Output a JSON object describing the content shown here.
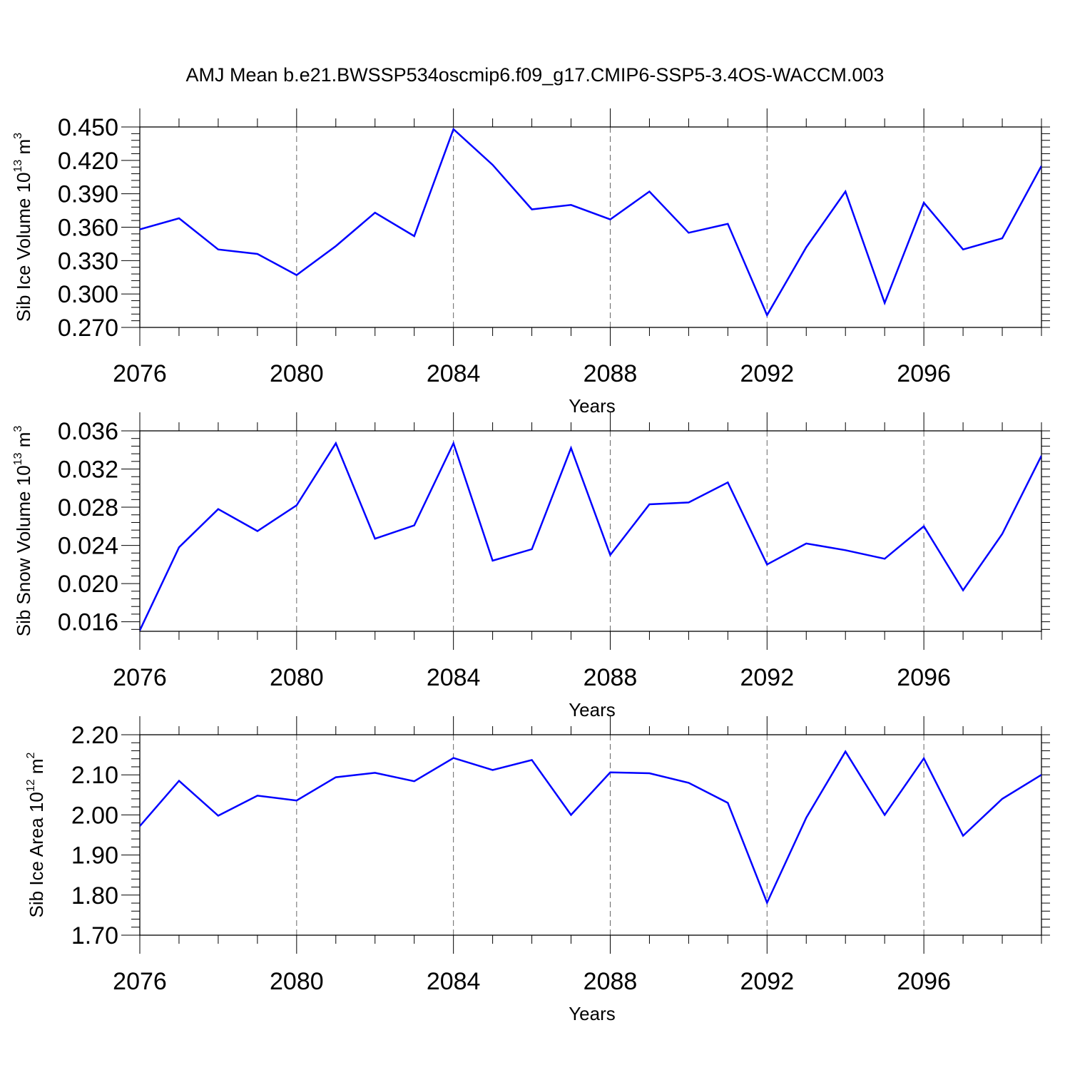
{
  "title": "AMJ Mean b.e21.BWSSP534oscmip6.f09_g17.CMIP6-SSP5-3.4OS-WACCM.003",
  "chart_data": [
    {
      "type": "line",
      "ylabel": {
        "text": "Sib Ice Volume 10",
        "sup": "13",
        "unit": " m",
        "unit_sup": "3"
      },
      "xlabel": "Years",
      "x": [
        2076,
        2077,
        2078,
        2079,
        2080,
        2081,
        2082,
        2083,
        2084,
        2085,
        2086,
        2087,
        2088,
        2089,
        2090,
        2091,
        2092,
        2093,
        2094,
        2095,
        2096,
        2097,
        2098,
        2099
      ],
      "series": [
        {
          "values": [
            0.358,
            0.368,
            0.34,
            0.336,
            0.317,
            0.343,
            0.373,
            0.352,
            0.448,
            0.416,
            0.376,
            0.38,
            0.367,
            0.392,
            0.355,
            0.363,
            0.281,
            0.342,
            0.392,
            0.292,
            0.382,
            0.34,
            0.35,
            0.415
          ],
          "color": "#0000ff"
        }
      ],
      "ylim": [
        0.27,
        0.45
      ],
      "xlim": [
        2076,
        2099
      ],
      "yticks": [
        0.27,
        0.3,
        0.33,
        0.36,
        0.39,
        0.42,
        0.45
      ],
      "ytick_labels": [
        "0.270",
        "0.300",
        "0.330",
        "0.360",
        "0.390",
        "0.420",
        "0.450"
      ],
      "xticks": [
        2076,
        2080,
        2084,
        2088,
        2092,
        2096
      ],
      "xtick_labels": [
        "2076",
        "2080",
        "2084",
        "2088",
        "2092",
        "2096"
      ],
      "grid": "vertical dashed at major x ticks"
    },
    {
      "type": "line",
      "ylabel": {
        "text": "Sib Snow Volume 10",
        "sup": "13",
        "unit": " m",
        "unit_sup": "3"
      },
      "xlabel": "Years",
      "x": [
        2076,
        2077,
        2078,
        2079,
        2080,
        2081,
        2082,
        2083,
        2084,
        2085,
        2086,
        2087,
        2088,
        2089,
        2090,
        2091,
        2092,
        2093,
        2094,
        2095,
        2096,
        2097,
        2098,
        2099
      ],
      "series": [
        {
          "values": [
            0.0151,
            0.0238,
            0.0278,
            0.0255,
            0.0282,
            0.0347,
            0.0247,
            0.0261,
            0.0347,
            0.0224,
            0.0236,
            0.0342,
            0.023,
            0.0283,
            0.0285,
            0.0306,
            0.022,
            0.0242,
            0.0235,
            0.0226,
            0.026,
            0.0193,
            0.0252,
            0.0334
          ],
          "color": "#0000ff"
        }
      ],
      "ylim": [
        0.015,
        0.036
      ],
      "xlim": [
        2076,
        2099
      ],
      "yticks": [
        0.016,
        0.02,
        0.024,
        0.028,
        0.032,
        0.036
      ],
      "ytick_labels": [
        "0.016",
        "0.020",
        "0.024",
        "0.028",
        "0.032",
        "0.036"
      ],
      "xticks": [
        2076,
        2080,
        2084,
        2088,
        2092,
        2096
      ],
      "xtick_labels": [
        "2076",
        "2080",
        "2084",
        "2088",
        "2092",
        "2096"
      ],
      "grid": "vertical dashed at major x ticks"
    },
    {
      "type": "line",
      "ylabel": {
        "text": "Sib Ice Area 10",
        "sup": "12",
        "unit": " m",
        "unit_sup": "2"
      },
      "xlabel": "Years",
      "x": [
        2076,
        2077,
        2078,
        2079,
        2080,
        2081,
        2082,
        2083,
        2084,
        2085,
        2086,
        2087,
        2088,
        2089,
        2090,
        2091,
        2092,
        2093,
        2094,
        2095,
        2096,
        2097,
        2098,
        2099
      ],
      "series": [
        {
          "values": [
            1.972,
            2.085,
            1.998,
            2.048,
            2.036,
            2.094,
            2.105,
            2.084,
            2.142,
            2.112,
            2.137,
            2.0,
            2.106,
            2.104,
            2.08,
            2.03,
            1.781,
            1.993,
            2.158,
            2.0,
            2.141,
            1.948,
            2.04,
            2.1
          ],
          "color": "#0000ff"
        }
      ],
      "ylim": [
        1.7,
        2.2
      ],
      "xlim": [
        2076,
        2099
      ],
      "yticks": [
        1.7,
        1.8,
        1.9,
        2.0,
        2.1,
        2.2
      ],
      "ytick_labels": [
        "1.70",
        "1.80",
        "1.90",
        "2.00",
        "2.10",
        "2.20"
      ],
      "xticks": [
        2076,
        2080,
        2084,
        2088,
        2092,
        2096
      ],
      "xtick_labels": [
        "2076",
        "2080",
        "2084",
        "2088",
        "2092",
        "2096"
      ],
      "grid": "vertical dashed at major x ticks"
    }
  ]
}
